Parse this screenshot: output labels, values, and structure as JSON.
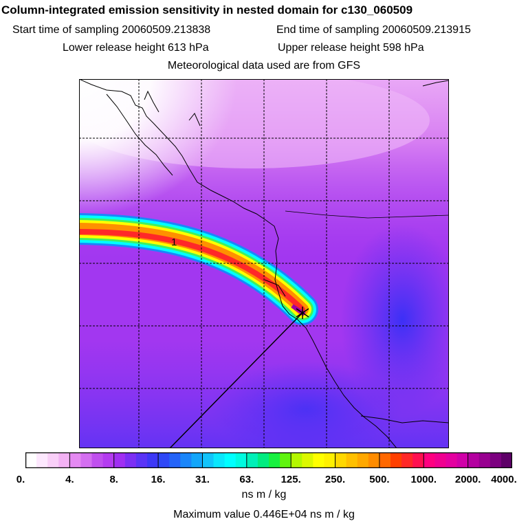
{
  "title": "Column-integrated emission sensitivity in nested domain for c130_060509",
  "sampling": {
    "start_label": "Start time of sampling 20060509.213838",
    "end_label": "End time of sampling 20060509.213915"
  },
  "release": {
    "lower_label": "Lower release height  613 hPa",
    "upper_label": "Upper release height  598 hPa"
  },
  "met_label": "Meteorological data used are from GFS",
  "map": {
    "plume_label": "1"
  },
  "colorbar": {
    "ticks": [
      "0.",
      "4.",
      "8.",
      "16.",
      "31.",
      "63.",
      "125.",
      "250.",
      "500.",
      "1000.",
      "2000.",
      "4000."
    ],
    "colors": [
      "#ffffff",
      "#fde8fe",
      "#f9cff8",
      "#f3b2f4",
      "#e58af2",
      "#d46ff0",
      "#c050ee",
      "#b43cf0",
      "#a02ff2",
      "#7c2ff4",
      "#5a34f6",
      "#3d38f6",
      "#2f48f6",
      "#2464f8",
      "#1a86fa",
      "#12a6fa",
      "#12c4fa",
      "#0ae6fc",
      "#00ffff",
      "#00fae0",
      "#00f0b8",
      "#00ec80",
      "#18f040",
      "#60f410",
      "#b4f800",
      "#dcf800",
      "#ffff00",
      "#fff000",
      "#ffd800",
      "#ffc000",
      "#ffa800",
      "#ff8c00",
      "#ff6800",
      "#ff4000",
      "#ff2828",
      "#ff1050",
      "#ff0080",
      "#f00090",
      "#e400a0",
      "#d000a8",
      "#b400a0",
      "#980090",
      "#7c0080",
      "#5e0068"
    ],
    "units": "ns m / kg"
  },
  "max_value_label": "Maximum value  0.446E+04 ns m / kg"
}
